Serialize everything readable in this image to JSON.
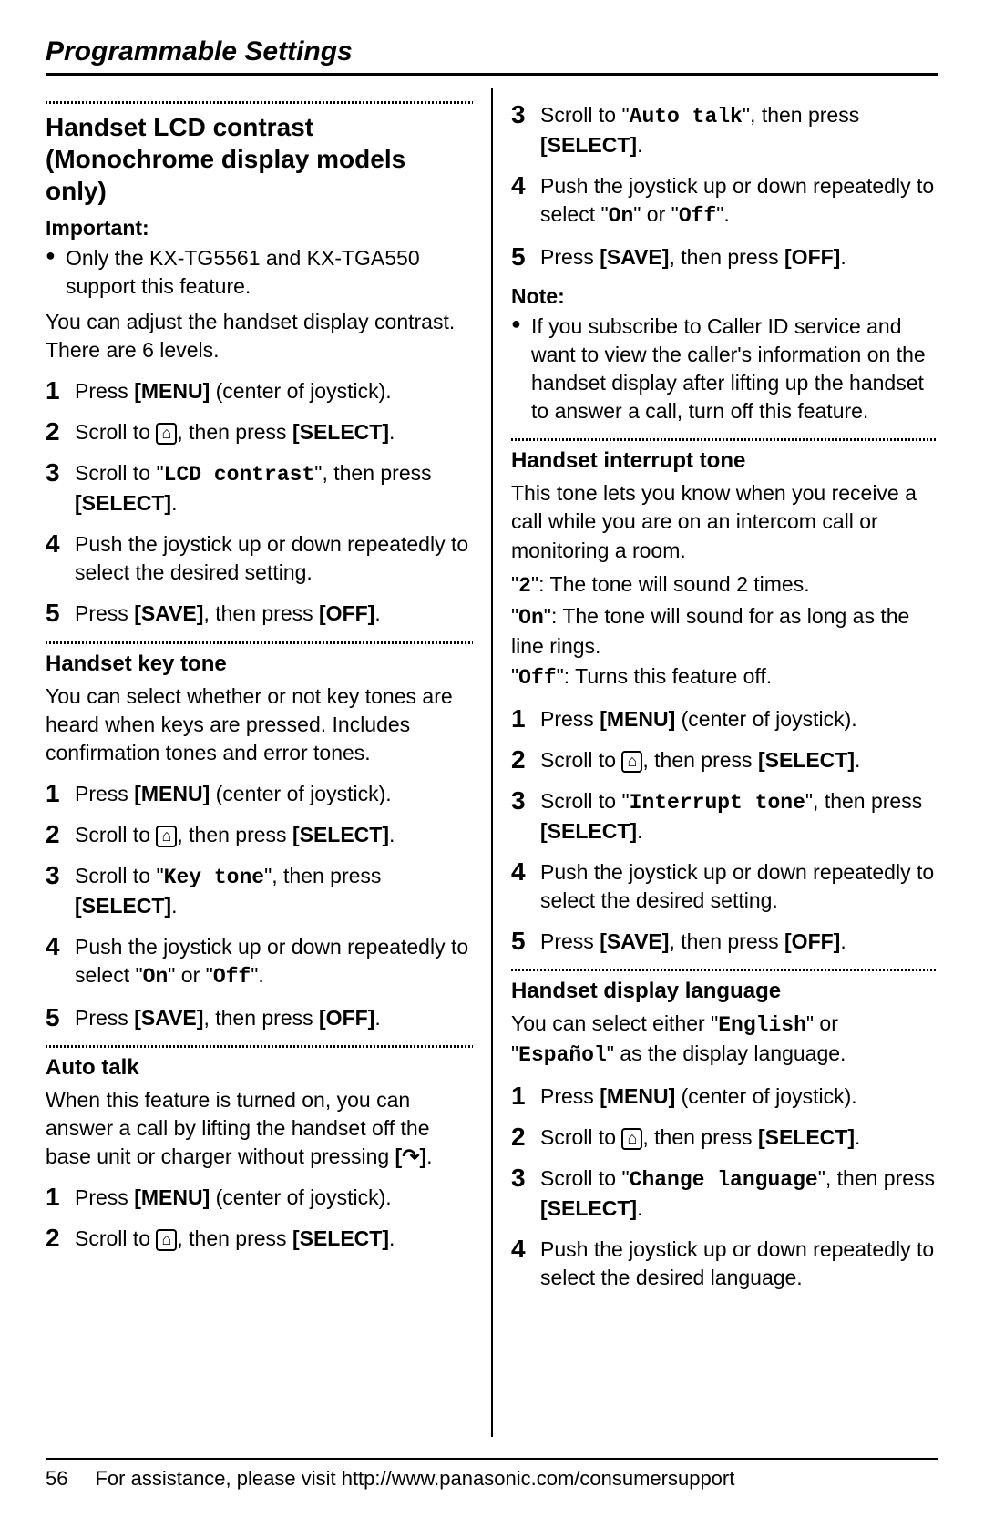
{
  "header": "Programmable Settings",
  "footer": {
    "page": "56",
    "text": "For assistance, please visit http://www.panasonic.com/consumersupport"
  },
  "icons": {
    "settings_box": "⌂",
    "talk": "↷"
  },
  "left": {
    "sections": [
      {
        "key": "lcd",
        "title": "Handset LCD contrast (Monochrome display models only)",
        "important_label": "Important:",
        "important_bullets": [
          "Only the KX-TG5561 and KX-TGA550 support this feature."
        ],
        "intro": "You can adjust the handset display contrast. There are 6 levels.",
        "steps": [
          {
            "pre": "Press ",
            "bold": "[MENU]",
            "post": " (center of joystick)."
          },
          {
            "pre": "Scroll to ",
            "icon": "settings_box",
            "post": ", then press ",
            "bold2": "[SELECT]",
            "tail": "."
          },
          {
            "pre": "Scroll to \"",
            "mono": "LCD contrast",
            "post": "\", then press ",
            "bold2": "[SELECT]",
            "tail": "."
          },
          {
            "plain": "Push the joystick up or down repeatedly to select the desired setting."
          },
          {
            "pre": "Press ",
            "bold": "[SAVE]",
            "post": ", then press ",
            "bold2": "[OFF]",
            "tail": "."
          }
        ]
      },
      {
        "key": "keytone",
        "title": "Handset key tone",
        "intro": "You can select whether or not key tones are heard when keys are pressed. Includes confirmation tones and error tones.",
        "steps": [
          {
            "pre": "Press ",
            "bold": "[MENU]",
            "post": " (center of joystick)."
          },
          {
            "pre": "Scroll to ",
            "icon": "settings_box",
            "post": ", then press ",
            "bold2": "[SELECT]",
            "tail": "."
          },
          {
            "pre": "Scroll to \"",
            "mono": "Key tone",
            "post": "\", then press ",
            "bold2": "[SELECT]",
            "tail": "."
          },
          {
            "pre": "Push the joystick up or down repeatedly to select \"",
            "mono": "On",
            "post": "\" or \"",
            "mono2": "Off",
            "tail": "\"."
          },
          {
            "pre": "Press ",
            "bold": "[SAVE]",
            "post": ", then press ",
            "bold2": "[OFF]",
            "tail": "."
          }
        ]
      },
      {
        "key": "autotalk_top",
        "title": "Auto talk",
        "intro_parts": {
          "pre": "When this feature is turned on, you can answer a call by lifting the handset off the base unit or charger without pressing ",
          "bold": "[",
          "icon": "talk",
          "bold2": "]",
          "tail": "."
        },
        "steps": [
          {
            "pre": "Press ",
            "bold": "[MENU]",
            "post": " (center of joystick)."
          },
          {
            "pre": "Scroll to ",
            "icon": "settings_box",
            "post": ", then press ",
            "bold2": "[SELECT]",
            "tail": "."
          }
        ]
      }
    ]
  },
  "right": {
    "autotalk_cont": {
      "steps": [
        {
          "num": "3",
          "pre": "Scroll to \"",
          "mono": "Auto talk",
          "post": "\", then press ",
          "bold2": "[SELECT]",
          "tail": "."
        },
        {
          "num": "4",
          "pre": "Push the joystick up or down repeatedly to select \"",
          "mono": "On",
          "post": "\" or \"",
          "mono2": "Off",
          "tail": "\"."
        },
        {
          "num": "5",
          "pre": "Press ",
          "bold": "[SAVE]",
          "post": ", then press ",
          "bold2": "[OFF]",
          "tail": "."
        }
      ],
      "note_label": "Note:",
      "note_bullets": [
        "If you subscribe to Caller ID service and want to view the caller's information on the handset display after lifting up the handset to answer a call, turn off this feature."
      ]
    },
    "interrupt": {
      "title": "Handset interrupt tone",
      "intro_lines": [
        "This tone lets you know when you receive a call while you are on an intercom call or monitoring a room."
      ],
      "option_lines": [
        {
          "mono": "2",
          "post": ": The tone will sound 2 times."
        },
        {
          "mono": "On",
          "post": ": The tone will sound for as long as the line rings."
        },
        {
          "mono": "Off",
          "post": ": Turns this feature off."
        }
      ],
      "steps": [
        {
          "pre": "Press ",
          "bold": "[MENU]",
          "post": " (center of joystick)."
        },
        {
          "pre": "Scroll to ",
          "icon": "settings_box",
          "post": ", then press ",
          "bold2": "[SELECT]",
          "tail": "."
        },
        {
          "pre": "Scroll to \"",
          "mono": "Interrupt tone",
          "post": "\", then press ",
          "bold2": "[SELECT]",
          "tail": "."
        },
        {
          "plain": "Push the joystick up or down repeatedly to select the desired setting."
        },
        {
          "pre": "Press ",
          "bold": "[SAVE]",
          "post": ", then press ",
          "bold2": "[OFF]",
          "tail": "."
        }
      ]
    },
    "language": {
      "title": "Handset display language",
      "intro_parts": {
        "pre": "You can select either \"",
        "mono": "English",
        "mid": "\" or \"",
        "mono2": "Español",
        "tail": "\" as the display language."
      },
      "steps": [
        {
          "pre": "Press ",
          "bold": "[MENU]",
          "post": " (center of joystick)."
        },
        {
          "pre": "Scroll to ",
          "icon": "settings_box",
          "post": ", then press ",
          "bold2": "[SELECT]",
          "tail": "."
        },
        {
          "pre": "Scroll to \"",
          "mono": "Change language",
          "post": "\", then press ",
          "bold2": "[SELECT]",
          "tail": "."
        },
        {
          "plain": "Push the joystick up or down repeatedly to select the desired language."
        }
      ]
    }
  }
}
